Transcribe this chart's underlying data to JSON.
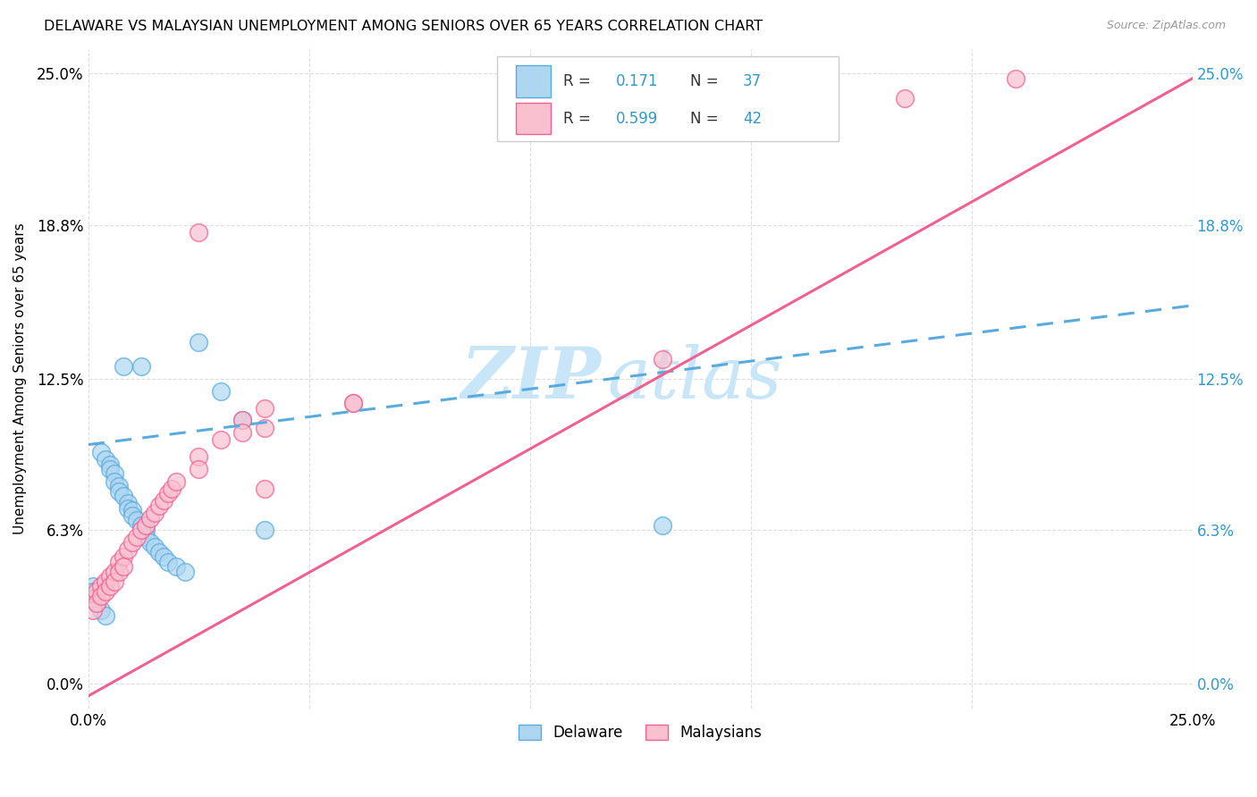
{
  "title": "DELAWARE VS MALAYSIAN UNEMPLOYMENT AMONG SENIORS OVER 65 YEARS CORRELATION CHART",
  "source": "Source: ZipAtlas.com",
  "ylabel": "Unemployment Among Seniors over 65 years",
  "xlim": [
    0,
    0.25
  ],
  "ylim": [
    -0.01,
    0.26
  ],
  "ytick_labels": [
    "0.0%",
    "6.3%",
    "12.5%",
    "18.8%",
    "25.0%"
  ],
  "ytick_values": [
    0.0,
    0.063,
    0.125,
    0.188,
    0.25
  ],
  "xtick_labels": [
    "0.0%",
    "25.0%"
  ],
  "xtick_values": [
    0.0,
    0.25
  ],
  "background_color": "#ffffff",
  "grid_color": "#dddddd",
  "watermark_zip": "ZIP",
  "watermark_atlas": "atlas",
  "watermark_color": "#c8e6f8",
  "legend_R1": "0.171",
  "legend_N1": "37",
  "legend_R2": "0.599",
  "legend_N2": "42",
  "legend_label1": "Delaware",
  "legend_label2": "Malaysians",
  "line1_color": "#5aabdd",
  "line2_color": "#f06090",
  "scatter1_color": "#aed6f1",
  "scatter2_color": "#f9c0d0",
  "scatter1_edge": "#5aabdd",
  "scatter2_edge": "#f06090",
  "blue_text_color": "#3399cc",
  "del_line_y0": 0.098,
  "del_line_y1": 0.155,
  "mal_line_y0": -0.005,
  "mal_line_y1": 0.248,
  "del_x": [
    0.003,
    0.004,
    0.005,
    0.005,
    0.006,
    0.006,
    0.007,
    0.007,
    0.008,
    0.008,
    0.009,
    0.009,
    0.01,
    0.01,
    0.011,
    0.012,
    0.012,
    0.013,
    0.013,
    0.014,
    0.015,
    0.016,
    0.017,
    0.018,
    0.02,
    0.022,
    0.025,
    0.03,
    0.035,
    0.001,
    0.001,
    0.002,
    0.002,
    0.003,
    0.004,
    0.13,
    0.04
  ],
  "del_y": [
    0.095,
    0.092,
    0.09,
    0.088,
    0.086,
    0.083,
    0.081,
    0.079,
    0.077,
    0.13,
    0.074,
    0.072,
    0.071,
    0.069,
    0.067,
    0.065,
    0.13,
    0.063,
    0.06,
    0.058,
    0.056,
    0.054,
    0.052,
    0.05,
    0.048,
    0.046,
    0.14,
    0.12,
    0.108,
    0.04,
    0.038,
    0.035,
    0.033,
    0.03,
    0.028,
    0.065,
    0.063
  ],
  "mal_x": [
    0.001,
    0.001,
    0.002,
    0.002,
    0.003,
    0.003,
    0.004,
    0.004,
    0.005,
    0.005,
    0.006,
    0.006,
    0.007,
    0.007,
    0.008,
    0.008,
    0.009,
    0.01,
    0.011,
    0.012,
    0.013,
    0.014,
    0.015,
    0.016,
    0.017,
    0.018,
    0.019,
    0.02,
    0.025,
    0.025,
    0.03,
    0.035,
    0.035,
    0.04,
    0.04,
    0.06,
    0.04,
    0.185,
    0.21,
    0.13,
    0.06,
    0.025
  ],
  "mal_y": [
    0.035,
    0.03,
    0.038,
    0.033,
    0.04,
    0.036,
    0.042,
    0.038,
    0.044,
    0.04,
    0.046,
    0.042,
    0.05,
    0.046,
    0.052,
    0.048,
    0.055,
    0.058,
    0.06,
    0.063,
    0.065,
    0.068,
    0.07,
    0.073,
    0.075,
    0.078,
    0.08,
    0.083,
    0.093,
    0.088,
    0.1,
    0.108,
    0.103,
    0.113,
    0.105,
    0.115,
    0.08,
    0.24,
    0.248,
    0.133,
    0.115,
    0.185
  ]
}
